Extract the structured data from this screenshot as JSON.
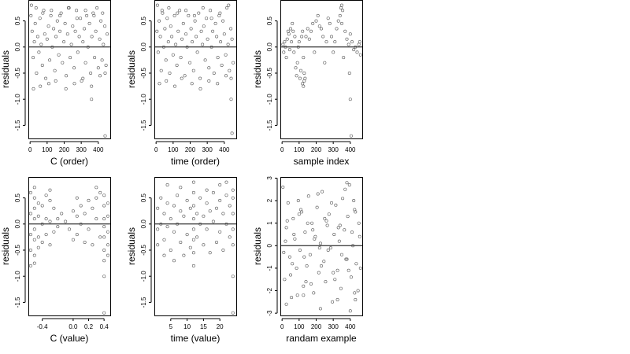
{
  "chart_data": [
    {
      "type": "scatter",
      "xlabel": "C (order)",
      "ylabel": "residuals",
      "xlim": [
        -10,
        470
      ],
      "ylim": [
        -1.75,
        0.9
      ],
      "xticks": [
        0,
        100,
        200,
        300,
        400
      ],
      "xtick_labels": [
        "0",
        "100",
        "200",
        "300",
        "400"
      ],
      "yticks": [
        0.5,
        0.0,
        -0.5,
        -1.0,
        -1.5
      ],
      "ytick_labels": [
        "0.5",
        "0.0",
        "-0.5",
        "-1.0",
        "-1.5"
      ],
      "reference_line_y": 0,
      "points": {
        "x": [
          5,
          12,
          18,
          25,
          30,
          38,
          45,
          52,
          58,
          65,
          72,
          80,
          86,
          92,
          100,
          108,
          115,
          122,
          130,
          138,
          145,
          152,
          160,
          168,
          175,
          182,
          190,
          198,
          205,
          212,
          220,
          228,
          235,
          242,
          250,
          258,
          265,
          272,
          280,
          288,
          295,
          302,
          310,
          318,
          325,
          332,
          340,
          348,
          355,
          362,
          370,
          378,
          385,
          392,
          400,
          408,
          415,
          422,
          430,
          438,
          445,
          452,
          20,
          60,
          110,
          150,
          210,
          260,
          310,
          360,
          410,
          440,
          8,
          35,
          75,
          125,
          175,
          225,
          275,
          325,
          375,
          425,
          360,
          440
        ],
        "y": [
          0.6,
          0.3,
          -0.2,
          0.1,
          0.45,
          -0.5,
          0.2,
          -0.1,
          0.55,
          0.05,
          -0.35,
          0.7,
          0.25,
          -0.6,
          0.15,
          0.4,
          -0.25,
          0.6,
          0.0,
          0.35,
          -0.45,
          0.2,
          0.5,
          -0.15,
          0.3,
          0.65,
          -0.3,
          0.1,
          0.45,
          -0.55,
          0.25,
          0.75,
          -0.2,
          0.05,
          0.4,
          -0.4,
          0.3,
          0.7,
          -0.1,
          0.2,
          0.55,
          -0.65,
          0.1,
          0.35,
          -0.3,
          0.6,
          0.0,
          0.45,
          -0.5,
          0.2,
          0.65,
          -0.2,
          0.3,
          0.75,
          -0.4,
          0.15,
          0.5,
          -0.25,
          0.05,
          0.4,
          -0.35,
          0.25,
          -0.8,
          -0.75,
          -0.7,
          -0.65,
          -0.8,
          -0.7,
          -0.6,
          -0.75,
          -0.55,
          -0.5,
          0.8,
          0.75,
          0.65,
          0.7,
          0.6,
          0.75,
          0.55,
          0.7,
          0.6,
          0.65,
          -1.0,
          -1.7
        ]
      }
    },
    {
      "type": "scatter",
      "xlabel": "time (order)",
      "ylabel": "residuals",
      "xlim": [
        -10,
        470
      ],
      "ylim": [
        -1.75,
        0.9
      ],
      "xticks": [
        0,
        100,
        200,
        300,
        400
      ],
      "xtick_labels": [
        "0",
        "100",
        "200",
        "300",
        "400"
      ],
      "yticks": [
        0.5,
        0.0,
        -0.5,
        -1.0,
        -1.5
      ],
      "ytick_labels": [
        "0.5",
        "0.0",
        "-0.5",
        "-1.0",
        "-1.5"
      ],
      "reference_line_y": 0,
      "points": {
        "x": [
          5,
          12,
          18,
          25,
          30,
          38,
          45,
          52,
          58,
          65,
          72,
          80,
          86,
          92,
          100,
          108,
          115,
          122,
          130,
          138,
          145,
          152,
          160,
          168,
          175,
          182,
          190,
          198,
          205,
          212,
          220,
          228,
          235,
          242,
          250,
          258,
          265,
          272,
          280,
          288,
          295,
          302,
          310,
          318,
          325,
          332,
          340,
          348,
          355,
          362,
          370,
          378,
          385,
          392,
          400,
          408,
          415,
          422,
          430,
          438,
          445,
          452,
          20,
          60,
          110,
          150,
          210,
          260,
          310,
          360,
          410,
          440,
          8,
          35,
          75,
          125,
          175,
          225,
          275,
          325,
          375,
          425,
          440,
          445
        ],
        "y": [
          0.3,
          -0.1,
          0.5,
          0.2,
          -0.45,
          0.65,
          0.0,
          0.35,
          -0.25,
          0.55,
          0.1,
          -0.5,
          0.4,
          0.2,
          -0.15,
          0.6,
          0.05,
          -0.35,
          0.3,
          0.7,
          -0.2,
          0.15,
          0.45,
          -0.55,
          0.25,
          0.0,
          0.6,
          -0.3,
          0.35,
          0.1,
          -0.45,
          0.5,
          0.2,
          -0.1,
          0.65,
          -0.6,
          0.3,
          0.05,
          0.4,
          -0.25,
          0.55,
          0.15,
          -0.4,
          0.7,
          0.0,
          0.3,
          -0.5,
          0.45,
          0.2,
          -0.2,
          0.6,
          0.1,
          -0.35,
          0.5,
          0.25,
          -0.15,
          0.75,
          0.05,
          -0.45,
          0.35,
          0.15,
          -0.3,
          -0.7,
          -0.65,
          -0.75,
          -0.6,
          -0.7,
          -0.8,
          -0.65,
          -0.7,
          -0.55,
          -0.6,
          0.8,
          0.7,
          0.75,
          0.65,
          0.7,
          0.6,
          0.75,
          0.55,
          0.65,
          0.8,
          -1.0,
          -1.65
        ]
      }
    },
    {
      "type": "scatter",
      "xlabel": "sample index",
      "ylabel": "residuals",
      "xlim": [
        -10,
        470
      ],
      "ylim": [
        -1.75,
        0.9
      ],
      "xticks": [
        0,
        100,
        200,
        300,
        400
      ],
      "xtick_labels": [
        "0",
        "100",
        "200",
        "300",
        "400"
      ],
      "yticks": [
        0.5,
        0.0,
        -0.5,
        -1.0,
        -1.5
      ],
      "ytick_labels": [
        "0.5",
        "0.0",
        "-0.5",
        "-1.0",
        "-1.5"
      ],
      "reference_line_y": 0,
      "points": {
        "x": [
          5,
          10,
          15,
          20,
          25,
          30,
          35,
          40,
          45,
          50,
          55,
          60,
          65,
          70,
          75,
          80,
          85,
          90,
          95,
          100,
          105,
          110,
          115,
          120,
          125,
          130,
          140,
          150,
          160,
          170,
          180,
          190,
          200,
          210,
          220,
          230,
          240,
          250,
          260,
          270,
          280,
          290,
          300,
          310,
          320,
          330,
          340,
          350,
          360,
          370,
          380,
          390,
          400,
          410,
          420,
          430,
          440,
          450,
          455,
          460,
          345,
          350,
          355,
          395,
          400,
          405,
          120,
          125,
          130,
          135
        ],
        "y": [
          0.05,
          -0.1,
          0.1,
          0.0,
          -0.2,
          0.15,
          0.3,
          0.25,
          -0.05,
          0.35,
          0.1,
          0.45,
          0.3,
          -0.1,
          0.2,
          -0.4,
          -0.55,
          -0.3,
          0.0,
          0.1,
          -0.6,
          -0.45,
          0.2,
          0.3,
          -0.2,
          -0.5,
          0.2,
          0.35,
          0.15,
          0.3,
          0.45,
          -0.1,
          0.5,
          0.6,
          0.4,
          0.35,
          0.2,
          -0.3,
          0.1,
          0.55,
          0.45,
          0.2,
          -0.1,
          0.1,
          0.35,
          0.5,
          0.6,
          0.45,
          -0.2,
          0.3,
          0.15,
          0.05,
          0.25,
          0.1,
          -0.05,
          0.0,
          -0.1,
          0.05,
          0.1,
          -0.15,
          0.75,
          0.8,
          0.7,
          -0.5,
          -1.0,
          -1.7,
          -0.7,
          -0.75,
          -0.65,
          -0.6
        ]
      }
    },
    {
      "type": "scatter",
      "xlabel": "C (value)",
      "ylabel": "residuals",
      "xlim": [
        -0.58,
        0.48
      ],
      "ylim": [
        -1.75,
        0.9
      ],
      "xticks": [
        -0.4,
        0.0,
        0.2,
        0.4
      ],
      "xtick_labels": [
        "-0.4",
        "0.0",
        "0.2",
        "0.4"
      ],
      "yticks": [
        0.5,
        0.0,
        -0.5,
        -1.0,
        -1.5
      ],
      "ytick_labels": [
        "0.5",
        "0.0",
        "-0.5",
        "-1.0",
        "-1.5"
      ],
      "reference_line_y": 0,
      "points": {
        "x": [
          -0.55,
          -0.55,
          -0.55,
          -0.55,
          -0.55,
          -0.5,
          -0.5,
          -0.5,
          -0.5,
          -0.5,
          -0.5,
          -0.5,
          -0.45,
          -0.45,
          -0.45,
          -0.45,
          -0.4,
          -0.4,
          -0.4,
          -0.35,
          -0.35,
          -0.35,
          -0.3,
          -0.3,
          -0.3,
          -0.25,
          -0.25,
          -0.2,
          -0.2,
          -0.15,
          -0.1,
          -0.05,
          0.0,
          0.0,
          0.05,
          0.05,
          0.1,
          0.1,
          0.15,
          0.15,
          0.2,
          0.2,
          0.25,
          0.25,
          0.3,
          0.3,
          0.35,
          0.35,
          0.4,
          0.4,
          0.4,
          0.4,
          0.4,
          0.4,
          0.4,
          0.45,
          0.45,
          0.45,
          0.45,
          0.45,
          -0.5,
          -0.3,
          0.05,
          0.3,
          0.4,
          0.4
        ],
        "y": [
          0.6,
          0.2,
          -0.2,
          -0.5,
          -0.8,
          0.5,
          0.3,
          0.1,
          -0.1,
          -0.3,
          -0.6,
          -0.75,
          0.4,
          0.15,
          -0.25,
          -0.45,
          0.35,
          0.0,
          -0.35,
          0.55,
          0.1,
          -0.2,
          0.45,
          0.05,
          -0.4,
          0.3,
          -0.15,
          0.1,
          -0.05,
          0.2,
          0.05,
          -0.1,
          0.25,
          -0.3,
          0.15,
          -0.2,
          0.35,
          0.0,
          0.2,
          -0.35,
          0.45,
          -0.1,
          0.3,
          -0.4,
          0.5,
          0.1,
          0.6,
          -0.25,
          0.55,
          0.35,
          0.1,
          -0.05,
          -0.25,
          -0.5,
          -0.7,
          0.4,
          0.15,
          -0.15,
          -0.4,
          -0.6,
          0.7,
          0.65,
          0.5,
          0.7,
          -1.0,
          -1.7
        ]
      }
    },
    {
      "type": "scatter",
      "xlabel": "time (value)",
      "ylabel": "residuals",
      "xlim": [
        0,
        25
      ],
      "ylim": [
        -1.75,
        0.9
      ],
      "xticks": [
        5,
        10,
        15,
        20
      ],
      "xtick_labels": [
        "5",
        "10",
        "15",
        "20"
      ],
      "yticks": [
        0.5,
        0.0,
        -0.5,
        -1.0,
        -1.5
      ],
      "ytick_labels": [
        "0.5",
        "0.0",
        "-0.5",
        "-1.0",
        "-1.5"
      ],
      "reference_line_y": 0,
      "points": {
        "x": [
          1,
          1,
          1,
          2,
          2,
          3,
          3,
          3,
          4,
          4,
          5,
          5,
          6,
          6,
          6,
          7,
          7,
          8,
          8,
          9,
          9,
          10,
          10,
          11,
          11,
          12,
          12,
          12,
          12,
          12,
          12,
          12,
          13,
          13,
          14,
          14,
          15,
          15,
          16,
          16,
          17,
          17,
          18,
          18,
          19,
          19,
          20,
          20,
          21,
          21,
          22,
          22,
          23,
          23,
          24,
          24,
          24,
          24,
          24,
          4,
          8,
          12,
          16,
          20,
          22,
          24,
          24
        ],
        "y": [
          0.3,
          -0.1,
          -0.4,
          0.5,
          0.0,
          0.2,
          -0.3,
          -0.6,
          0.4,
          -0.05,
          0.1,
          -0.5,
          0.35,
          -0.15,
          -0.7,
          0.55,
          0.0,
          0.25,
          -0.35,
          0.15,
          -0.6,
          0.45,
          -0.2,
          0.3,
          -0.45,
          0.6,
          0.35,
          0.1,
          -0.1,
          -0.3,
          -0.55,
          -0.8,
          0.2,
          -0.25,
          0.5,
          0.0,
          0.15,
          -0.4,
          0.4,
          -0.1,
          0.25,
          -0.55,
          0.6,
          0.05,
          0.3,
          -0.35,
          0.45,
          -0.15,
          0.2,
          -0.5,
          0.55,
          0.0,
          0.35,
          -0.25,
          0.5,
          0.2,
          -0.1,
          -0.4,
          -1.0,
          0.75,
          0.7,
          0.8,
          0.65,
          0.75,
          0.8,
          0.65,
          -1.7
        ]
      }
    },
    {
      "type": "scatter",
      "xlabel": "randam example",
      "ylabel": "residuals",
      "xlim": [
        -10,
        470
      ],
      "ylim": [
        -3.1,
        3.05
      ],
      "xticks": [
        0,
        100,
        200,
        300,
        400
      ],
      "xtick_labels": [
        "0",
        "100",
        "200",
        "300",
        "400"
      ],
      "yticks": [
        3,
        2,
        1,
        0,
        -1,
        -2,
        -3
      ],
      "ytick_labels": [
        "3",
        "2",
        "1",
        "0",
        "-1",
        "-2",
        "-3"
      ],
      "reference_line_y": 0,
      "points": {
        "x": [
          5,
          15,
          25,
          35,
          45,
          55,
          65,
          75,
          85,
          95,
          105,
          115,
          125,
          135,
          145,
          155,
          165,
          175,
          185,
          195,
          205,
          215,
          225,
          235,
          245,
          255,
          265,
          275,
          285,
          295,
          305,
          315,
          325,
          335,
          345,
          355,
          365,
          375,
          385,
          395,
          405,
          415,
          425,
          435,
          445,
          455,
          10,
          30,
          50,
          70,
          90,
          110,
          130,
          150,
          170,
          190,
          210,
          230,
          250,
          270,
          290,
          310,
          330,
          350,
          370,
          390,
          410,
          430,
          450,
          20,
          60,
          100,
          140,
          180,
          220,
          260,
          300,
          340,
          380,
          420,
          460,
          25,
          125,
          225,
          325,
          425,
          380,
          400,
          430
        ],
        "y": [
          2.6,
          -1.5,
          0.8,
          1.9,
          -0.5,
          -2.3,
          1.2,
          0.3,
          -1.0,
          2.0,
          -0.2,
          1.5,
          -1.8,
          0.6,
          -0.9,
          2.2,
          -0.4,
          1.0,
          -2.1,
          0.4,
          1.7,
          -1.2,
          0.1,
          2.4,
          -0.7,
          -1.6,
          0.9,
          1.4,
          -0.1,
          -2.5,
          0.5,
          1.8,
          -1.1,
          0.2,
          -1.9,
          2.1,
          0.7,
          -0.6,
          1.3,
          2.7,
          -1.4,
          0.0,
          1.6,
          -0.8,
          -2.0,
          0.4,
          -0.3,
          1.1,
          -1.3,
          0.5,
          -2.2,
          1.6,
          -0.5,
          1.0,
          -1.7,
          0.3,
          2.3,
          -0.9,
          1.2,
          -0.2,
          1.9,
          -1.5,
          0.8,
          -0.4,
          2.5,
          -1.1,
          0.6,
          -2.4,
          1.0,
          0.2,
          -0.8,
          1.4,
          -1.6,
          0.7,
          -0.1,
          1.1,
          -1.2,
          0.9,
          -0.6,
          2.0,
          -1.0,
          -2.6,
          -2.2,
          -2.8,
          -2.4,
          -2.1,
          2.8,
          -2.9,
          1.5
        ]
      }
    }
  ]
}
